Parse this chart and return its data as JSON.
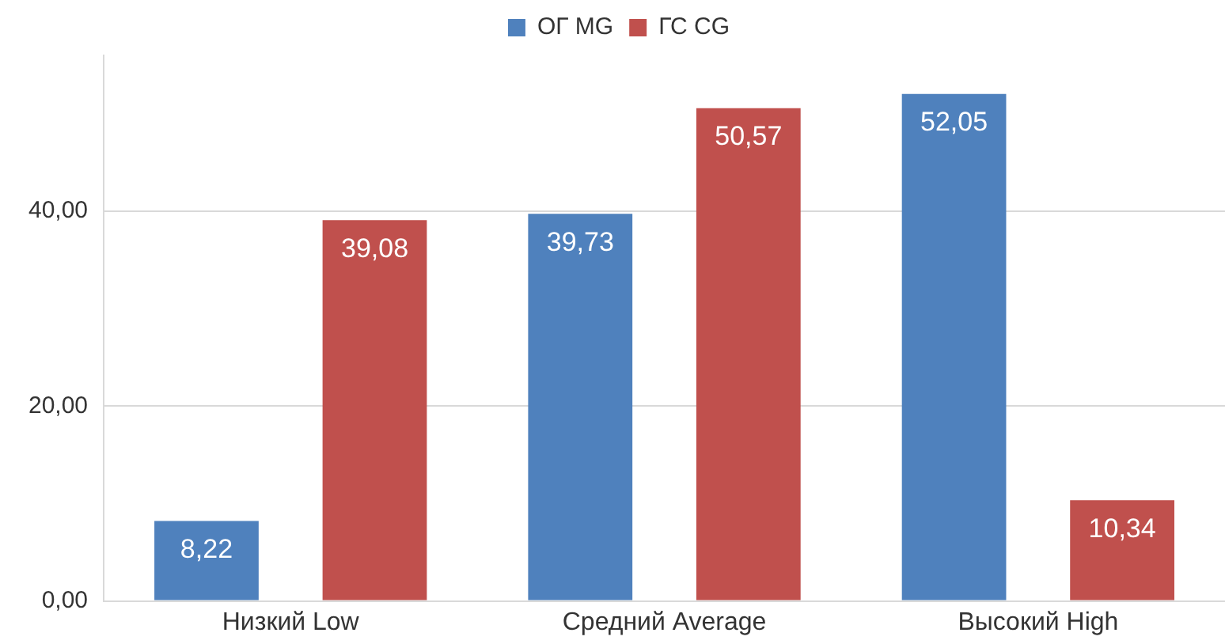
{
  "chart_data": {
    "type": "bar",
    "categories": [
      "Низкий Low",
      "Средний Average",
      "Высокий High"
    ],
    "series": [
      {
        "name": "ОГ MG",
        "color": "#4f81bd",
        "values": [
          8.22,
          39.73,
          52.05
        ],
        "value_labels": [
          "8,22",
          "39,73",
          "52,05"
        ]
      },
      {
        "name": "ГС CG",
        "color": "#c0504d",
        "values": [
          39.08,
          50.57,
          10.34
        ],
        "value_labels": [
          "39,08",
          "50,57",
          "10,34"
        ]
      }
    ],
    "ylim": [
      0,
      56
    ],
    "yticks": [
      {
        "value": 0,
        "label": "0,00"
      },
      {
        "value": 20,
        "label": "20,00"
      },
      {
        "value": 40,
        "label": "40,00"
      }
    ],
    "grid": "y",
    "legend": "top"
  }
}
